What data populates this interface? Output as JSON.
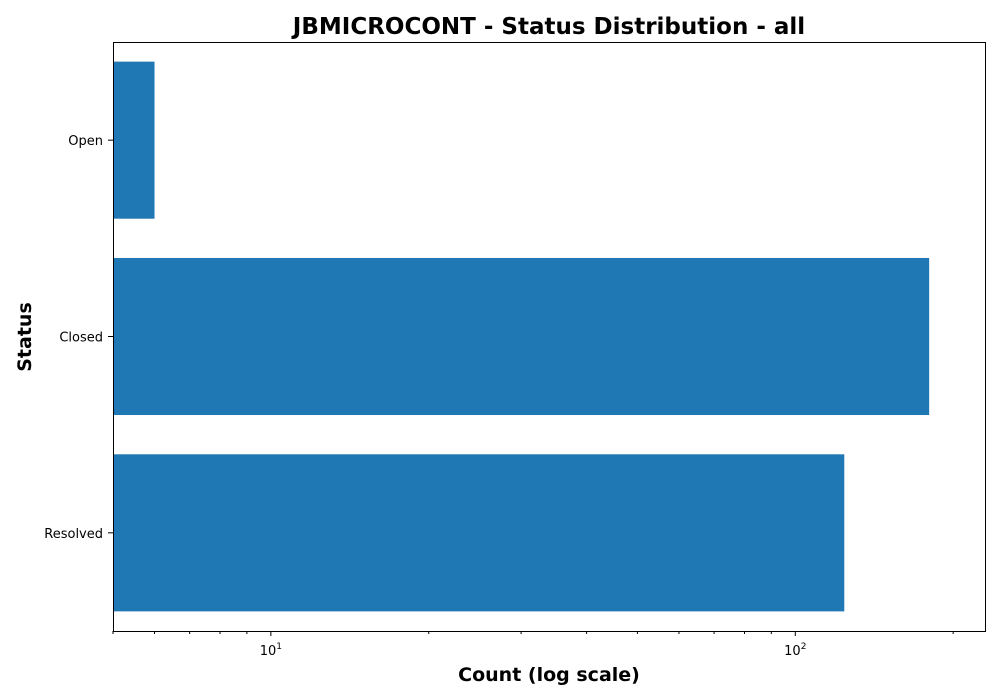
{
  "chart_data": {
    "type": "bar",
    "orientation": "horizontal",
    "title": "JBMICROCONT - Status Distribution - all",
    "xlabel": "Count (log scale)",
    "ylabel": "Status",
    "xscale": "log",
    "xlim": [
      5,
      230
    ],
    "x_ticks": [
      {
        "value": 10,
        "base": "10",
        "exp": "1"
      },
      {
        "value": 100,
        "base": "10",
        "exp": "2"
      }
    ],
    "categories": [
      "Open",
      "Closed",
      "Resolved"
    ],
    "values": [
      6,
      180,
      124
    ],
    "bar_color": "#1f77b4",
    "grid": false,
    "legend": "none"
  }
}
